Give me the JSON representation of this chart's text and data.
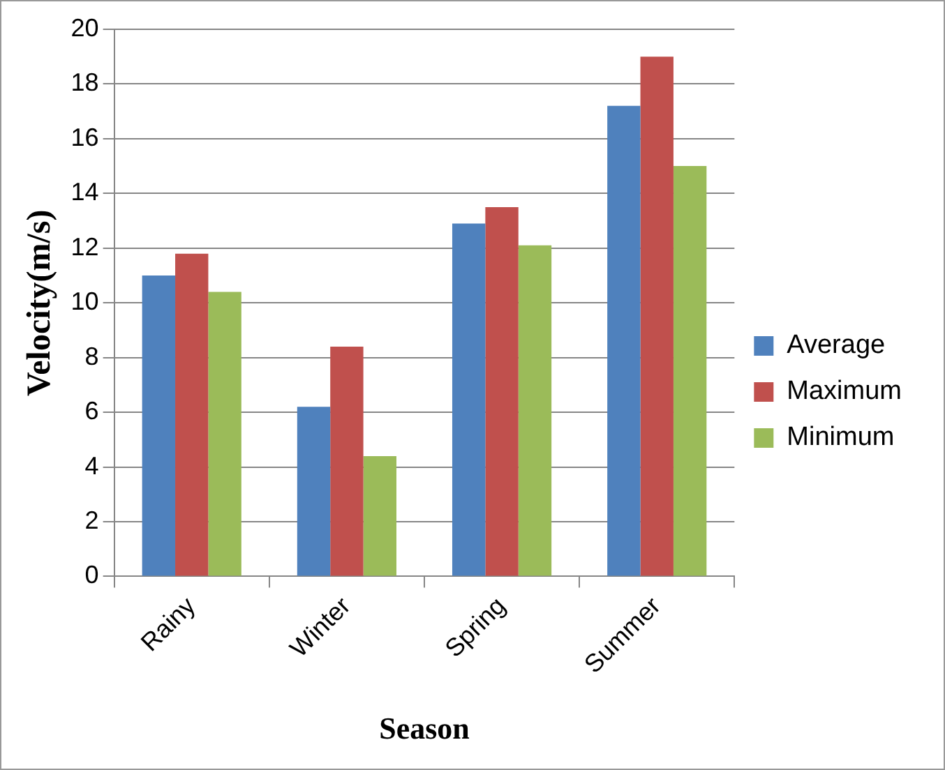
{
  "chart_data": {
    "type": "bar",
    "xlabel": "Season",
    "ylabel": "Velocity(m/s)",
    "categories": [
      "Rainy",
      "Winter",
      "Spring",
      "Summer"
    ],
    "series": [
      {
        "name": "Average",
        "color": "#4f81bd",
        "values": [
          11,
          6.2,
          12.9,
          17.2
        ]
      },
      {
        "name": "Maximum",
        "color": "#c0504d",
        "values": [
          11.8,
          8.4,
          13.5,
          19
        ]
      },
      {
        "name": "Minimum",
        "color": "#9bbb59",
        "values": [
          10.4,
          4.4,
          12.1,
          15
        ]
      }
    ],
    "ylim": [
      0,
      20
    ],
    "yticks": [
      0,
      2,
      4,
      6,
      8,
      10,
      12,
      14,
      16,
      18,
      20
    ],
    "grid": "y",
    "legend": "right"
  }
}
